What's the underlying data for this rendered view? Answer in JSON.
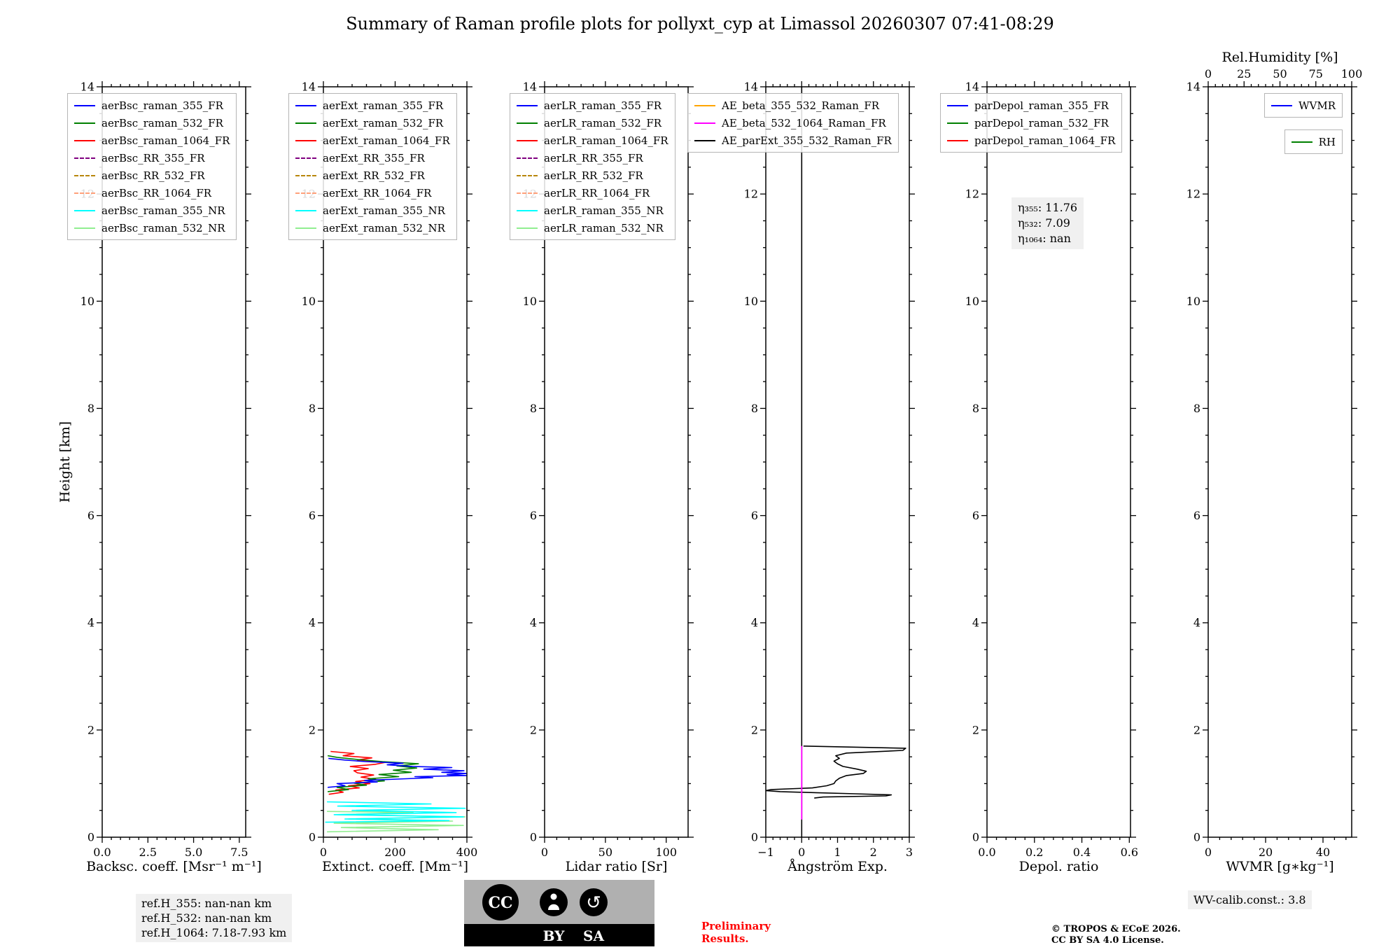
{
  "title": "Summary of Raman profile plots for pollyxt_cyp at Limassol 20260307 07:41-08:29",
  "ylabel": "Height [km]",
  "chart_data": [
    {
      "id": "backscatter",
      "type": "line",
      "xlabel": "Backsc. coeff. [Msr⁻¹ m⁻¹]",
      "xlim": [
        0,
        7.85
      ],
      "xticks": [
        0,
        2.5,
        5,
        7.5
      ],
      "xtick_labels": [
        "0.0",
        "2.5",
        "5.0",
        "7.5"
      ],
      "ylim": [
        0,
        14
      ],
      "yticks": [
        0,
        2,
        4,
        6,
        8,
        10,
        12,
        14
      ],
      "legend_position": "upper-left",
      "legend": [
        {
          "label": "aerBsc_raman_355_FR",
          "color": "#0000ff",
          "dash": false
        },
        {
          "label": "aerBsc_raman_532_FR",
          "color": "#008000",
          "dash": false
        },
        {
          "label": "aerBsc_raman_1064_FR",
          "color": "#ff0000",
          "dash": false
        },
        {
          "label": "aerBsc_RR_355_FR",
          "color": "#800080",
          "dash": true
        },
        {
          "label": "aerBsc_RR_532_FR",
          "color": "#b8860b",
          "dash": true
        },
        {
          "label": "aerBsc_RR_1064_FR",
          "color": "#ffa07a",
          "dash": true
        },
        {
          "label": "aerBsc_raman_355_NR",
          "color": "#00ffff",
          "dash": false
        },
        {
          "label": "aerBsc_raman_532_NR",
          "color": "#90ee90",
          "dash": false
        }
      ],
      "series": []
    },
    {
      "id": "extinction",
      "type": "line",
      "xlabel": "Extinct. coeff. [Mm⁻¹]",
      "xlim": [
        0,
        400
      ],
      "xticks": [
        0,
        200,
        400
      ],
      "xtick_labels": [
        "0",
        "200",
        "400"
      ],
      "ylim": [
        0,
        14
      ],
      "yticks": [
        0,
        2,
        4,
        6,
        8,
        10,
        12,
        14
      ],
      "legend_position": "upper-left",
      "legend": [
        {
          "label": "aerExt_raman_355_FR",
          "color": "#0000ff",
          "dash": false
        },
        {
          "label": "aerExt_raman_532_FR",
          "color": "#008000",
          "dash": false
        },
        {
          "label": "aerExt_raman_1064_FR",
          "color": "#ff0000",
          "dash": false
        },
        {
          "label": "aerExt_RR_355_FR",
          "color": "#800080",
          "dash": true
        },
        {
          "label": "aerExt_RR_532_FR",
          "color": "#b8860b",
          "dash": true
        },
        {
          "label": "aerExt_RR_1064_FR",
          "color": "#ffa07a",
          "dash": true
        },
        {
          "label": "aerExt_raman_355_NR",
          "color": "#00ffff",
          "dash": false
        },
        {
          "label": "aerExt_raman_532_NR",
          "color": "#90ee90",
          "dash": false
        }
      ],
      "series": [
        {
          "name": "aerExt_raman_532_NR",
          "color": "#90ee90",
          "width": 1.6,
          "segments": [
            [
              [
                10,
                0.1
              ],
              [
                320,
                0.14
              ],
              [
                50,
                0.18
              ],
              [
                390,
                0.22
              ],
              [
                30,
                0.26
              ],
              [
                360,
                0.3
              ],
              [
                70,
                0.34
              ],
              [
                395,
                0.38
              ],
              [
                40,
                0.42
              ],
              [
                250,
                0.46
              ],
              [
                10,
                0.48
              ]
            ]
          ]
        },
        {
          "name": "aerExt_raman_355_NR",
          "color": "#00ffff",
          "width": 1.6,
          "segments": [
            [
              [
                5,
                0.28
              ],
              [
                350,
                0.31
              ],
              [
                60,
                0.34
              ],
              [
                390,
                0.38
              ],
              [
                30,
                0.42
              ],
              [
                370,
                0.46
              ],
              [
                80,
                0.5
              ],
              [
                395,
                0.54
              ],
              [
                40,
                0.58
              ],
              [
                300,
                0.62
              ],
              [
                10,
                0.66
              ]
            ]
          ]
        },
        {
          "name": "aerExt_raman_1064_FR",
          "color": "#ff0000",
          "width": 1.6,
          "segments": [
            [
              [
                15,
                0.8
              ],
              [
                55,
                0.84
              ],
              [
                35,
                0.88
              ],
              [
                100,
                0.92
              ],
              [
                70,
                0.96
              ],
              [
                130,
                1.0
              ],
              [
                90,
                1.04
              ],
              [
                145,
                1.08
              ],
              [
                105,
                1.12
              ],
              [
                140,
                1.16
              ],
              [
                95,
                1.2
              ],
              [
                85,
                1.24
              ],
              [
                125,
                1.28
              ],
              [
                75,
                1.32
              ],
              [
                145,
                1.36
              ],
              [
                175,
                1.4
              ],
              [
                95,
                1.44
              ],
              [
                135,
                1.48
              ],
              [
                55,
                1.52
              ],
              [
                85,
                1.56
              ],
              [
                20,
                1.6
              ]
            ]
          ]
        },
        {
          "name": "aerExt_raman_532_FR",
          "color": "#008000",
          "width": 1.6,
          "segments": [
            [
              [
                12,
                0.85
              ],
              [
                70,
                0.89
              ],
              [
                38,
                0.93
              ],
              [
                120,
                0.97
              ],
              [
                85,
                1.01
              ],
              [
                170,
                1.05
              ],
              [
                125,
                1.09
              ],
              [
                210,
                1.13
              ],
              [
                155,
                1.17
              ],
              [
                245,
                1.21
              ],
              [
                195,
                1.25
              ],
              [
                260,
                1.29
              ],
              [
                205,
                1.33
              ],
              [
                265,
                1.37
              ],
              [
                165,
                1.41
              ],
              [
                95,
                1.45
              ],
              [
                38,
                1.49
              ],
              [
                12,
                1.52
              ]
            ]
          ]
        },
        {
          "name": "aerExt_raman_355_FR",
          "color": "#0000ff",
          "width": 1.6,
          "segments": [
            [
              [
                12,
                0.93
              ],
              [
                60,
                0.96
              ],
              [
                38,
                1.0
              ],
              [
                150,
                1.03
              ],
              [
                115,
                1.06
              ],
              [
                230,
                1.09
              ],
              [
                305,
                1.11
              ],
              [
                255,
                1.13
              ],
              [
                398,
                1.15
              ],
              [
                345,
                1.17
              ],
              [
                400,
                1.19
              ],
              [
                330,
                1.21
              ],
              [
                392,
                1.24
              ],
              [
                280,
                1.27
              ],
              [
                358,
                1.3
              ],
              [
                248,
                1.32
              ],
              [
                178,
                1.35
              ],
              [
                222,
                1.38
              ],
              [
                118,
                1.41
              ],
              [
                58,
                1.44
              ],
              [
                14,
                1.47
              ]
            ]
          ]
        }
      ]
    },
    {
      "id": "lidar-ratio",
      "type": "line",
      "xlabel": "Lidar ratio [Sr]",
      "xlim": [
        0,
        118
      ],
      "xticks": [
        0,
        50,
        100
      ],
      "xtick_labels": [
        "0",
        "50",
        "100"
      ],
      "ylim": [
        0,
        14
      ],
      "yticks": [
        0,
        2,
        4,
        6,
        8,
        10,
        12,
        14
      ],
      "legend_position": "upper-left",
      "legend": [
        {
          "label": "aerLR_raman_355_FR",
          "color": "#0000ff",
          "dash": false
        },
        {
          "label": "aerLR_raman_532_FR",
          "color": "#008000",
          "dash": false
        },
        {
          "label": "aerLR_raman_1064_FR",
          "color": "#ff0000",
          "dash": false
        },
        {
          "label": "aerLR_RR_355_FR",
          "color": "#800080",
          "dash": true
        },
        {
          "label": "aerLR_RR_532_FR",
          "color": "#b8860b",
          "dash": true
        },
        {
          "label": "aerLR_RR_1064_FR",
          "color": "#ffa07a",
          "dash": true
        },
        {
          "label": "aerLR_raman_355_NR",
          "color": "#00ffff",
          "dash": false
        },
        {
          "label": "aerLR_raman_532_NR",
          "color": "#90ee90",
          "dash": false
        }
      ],
      "series": []
    },
    {
      "id": "angstrom",
      "type": "line",
      "xlabel": "Ångström Exp.",
      "xlim": [
        -1,
        3
      ],
      "xticks": [
        -1,
        0,
        1,
        2,
        3
      ],
      "xtick_labels": [
        "−1",
        "0",
        "1",
        "2",
        "3"
      ],
      "ylim": [
        0,
        14
      ],
      "yticks": [
        0,
        2,
        4,
        6,
        8,
        10,
        12,
        14
      ],
      "legend_position": "upper-left",
      "legend": [
        {
          "label": "AE_beta_355_532_Raman_FR",
          "color": "#ffa500",
          "dash": false
        },
        {
          "label": "AE_beta_532_1064_Raman_FR",
          "color": "#ff00ff",
          "dash": false
        },
        {
          "label": "AE_parExt_355_532_Raman_FR",
          "color": "#000000",
          "dash": false
        }
      ],
      "series": [
        {
          "name": "AE_parExt_355_532_Raman_FR",
          "color": "#000000",
          "width": 1.6,
          "segments": [
            [
              [
                0,
                0
              ],
              [
                0,
                14
              ]
            ],
            [
              [
                0.05,
                1.7
              ],
              [
                2.9,
                1.66
              ],
              [
                2.82,
                1.62
              ],
              [
                1.25,
                1.57
              ],
              [
                0.95,
                1.52
              ],
              [
                1.05,
                1.47
              ],
              [
                0.9,
                1.42
              ],
              [
                1.0,
                1.37
              ],
              [
                1.15,
                1.32
              ],
              [
                1.55,
                1.27
              ],
              [
                1.8,
                1.23
              ],
              [
                1.72,
                1.19
              ],
              [
                1.25,
                1.15
              ],
              [
                1.05,
                1.1
              ],
              [
                0.95,
                1.05
              ],
              [
                0.9,
                1.0
              ],
              [
                0.7,
                0.96
              ],
              [
                0.3,
                0.92
              ],
              [
                -0.85,
                0.89
              ],
              [
                -1.0,
                0.87
              ],
              [
                -0.6,
                0.85
              ],
              [
                0.4,
                0.83
              ],
              [
                1.5,
                0.81
              ],
              [
                2.5,
                0.79
              ],
              [
                2.35,
                0.77
              ],
              [
                0.6,
                0.75
              ],
              [
                0.35,
                0.73
              ]
            ]
          ]
        },
        {
          "name": "AE_beta_532_1064_Raman_FR",
          "color": "#ff00ff",
          "width": 1.8,
          "segments": [
            [
              [
                0,
                0.33
              ],
              [
                0,
                1.7
              ]
            ]
          ]
        }
      ]
    },
    {
      "id": "depol",
      "type": "line",
      "xlabel": "Depol. ratio",
      "xlim": [
        0,
        0.605
      ],
      "xticks": [
        0,
        0.2,
        0.4,
        0.6
      ],
      "xtick_labels": [
        "0.0",
        "0.2",
        "0.4",
        "0.6"
      ],
      "ylim": [
        0,
        14
      ],
      "yticks": [
        0,
        2,
        4,
        6,
        8,
        10,
        12,
        14
      ],
      "legend_position": "upper-left",
      "legend": [
        {
          "label": "parDepol_raman_355_FR",
          "color": "#0000ff",
          "dash": false
        },
        {
          "label": "parDepol_raman_532_FR",
          "color": "#008000",
          "dash": false
        },
        {
          "label": "parDepol_raman_1064_FR",
          "color": "#ff0000",
          "dash": false
        }
      ],
      "eta_annotation": [
        "η₃₅₅: 11.76",
        "η₅₃₂: 7.09",
        "η₁₀₆₄: nan"
      ],
      "series": []
    },
    {
      "id": "wvmr",
      "type": "line",
      "xlabel": "WVMR [g∗kg⁻¹]",
      "xlim": [
        0,
        50
      ],
      "xticks": [
        0,
        20,
        40
      ],
      "xtick_labels": [
        "0",
        "20",
        "40"
      ],
      "ylim": [
        0,
        14
      ],
      "yticks": [
        0,
        2,
        4,
        6,
        8,
        10,
        12,
        14
      ],
      "top_axis": {
        "label": "Rel.Humidity [%]",
        "xlim": [
          0,
          100
        ],
        "xticks": [
          0,
          25,
          50,
          75,
          100
        ],
        "xtick_labels": [
          "0",
          "25",
          "50",
          "75",
          "100"
        ]
      },
      "legend_position": "upper-right-separate",
      "legend": [
        {
          "label": "WVMR",
          "color": "#0000ff",
          "dash": false
        },
        {
          "label": "RH",
          "color": "#008000",
          "dash": false
        }
      ],
      "series": []
    }
  ],
  "footer": {
    "ref_heights": [
      "ref.H_355: nan-nan km",
      "ref.H_532: nan-nan km",
      "ref.H_1064: 7.18-7.93 km"
    ],
    "badge": {
      "cc": "CC",
      "by": "BY",
      "sa": "SA"
    },
    "preliminary_line1": "Preliminary",
    "preliminary_line2": "Results.",
    "copyright_line1": "© TROPOS & ECoE 2026.",
    "copyright_line2": "CC BY SA 4.0 License.",
    "wv_calib": "WV-calib.const.: 3.8"
  }
}
